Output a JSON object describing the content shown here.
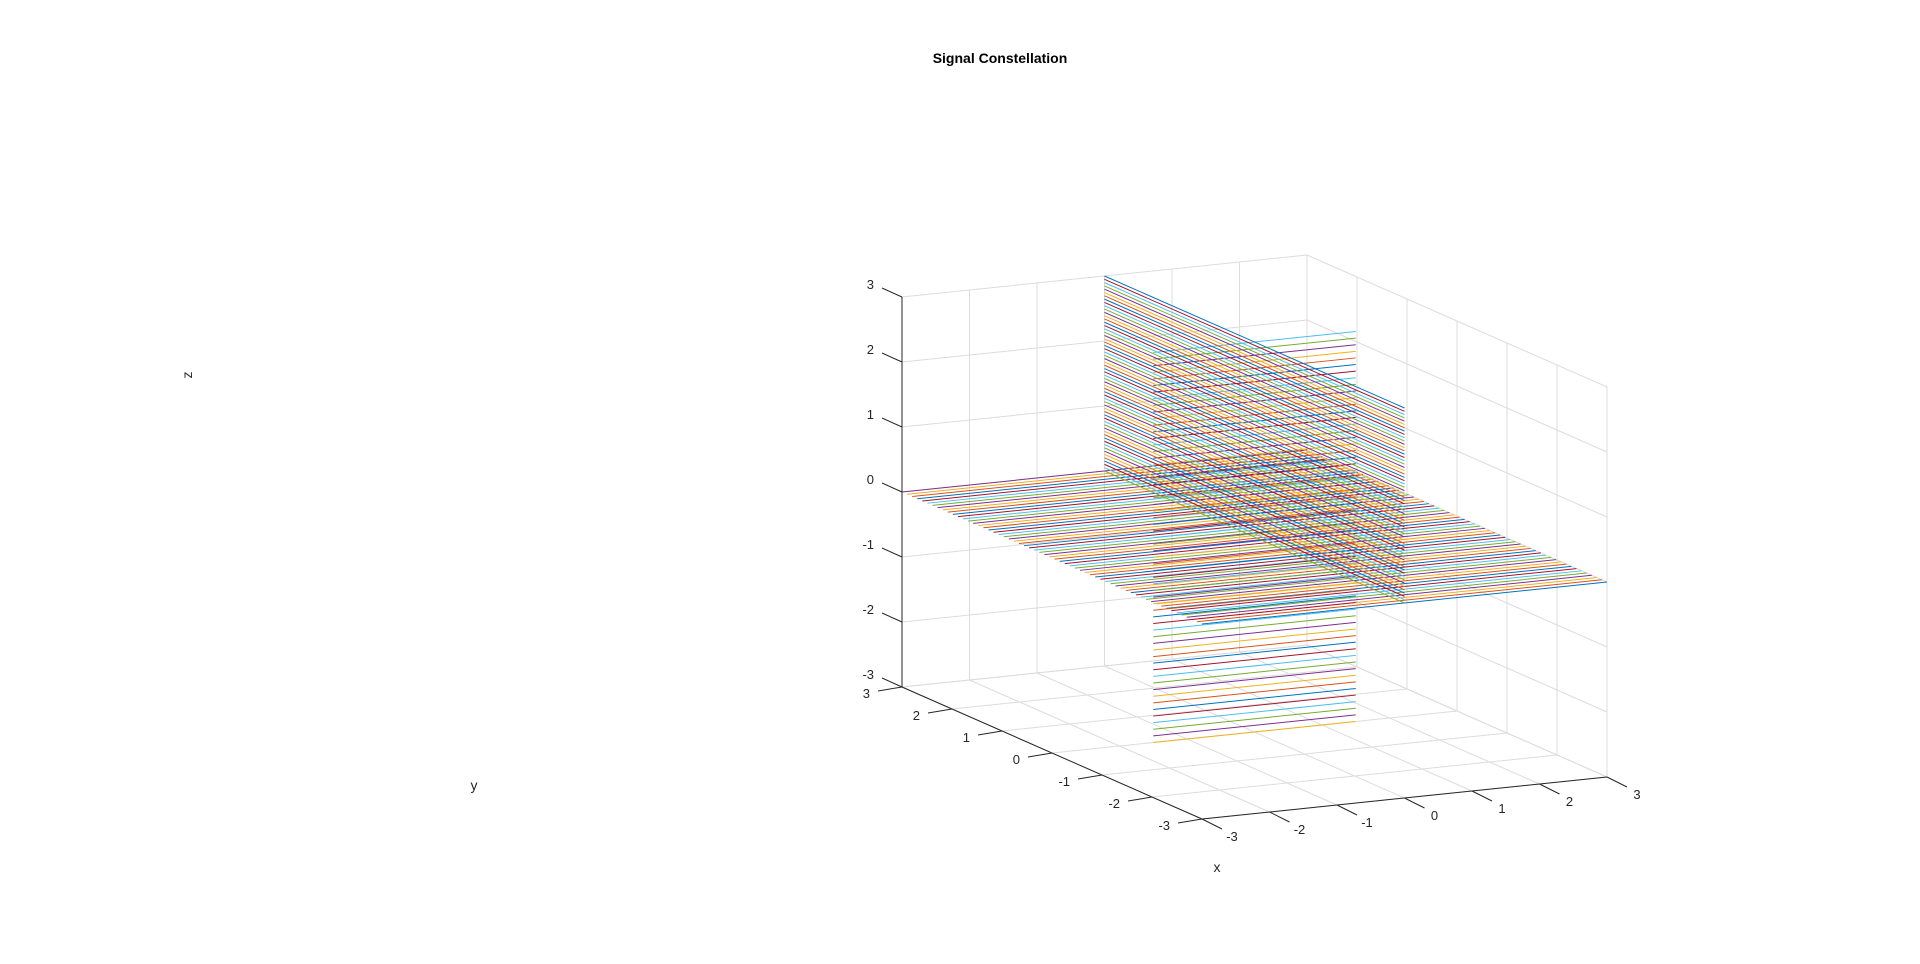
{
  "chart_data": {
    "type": "line",
    "dimensions": 3,
    "title": "Signal Constellation",
    "xlabel": "x",
    "ylabel": "y",
    "zlabel": "z",
    "xlim": [
      -3,
      3
    ],
    "ylim": [
      -3,
      3
    ],
    "zlim": [
      -3,
      3
    ],
    "x_ticks": [
      "-3",
      "-2",
      "-1",
      "0",
      "1",
      "2",
      "3"
    ],
    "y_ticks": [
      "-3",
      "-2",
      "-1",
      "0",
      "1",
      "2",
      "3"
    ],
    "z_ticks": [
      "-3",
      "-2",
      "-1",
      "0",
      "1",
      "2",
      "3"
    ],
    "grid": true,
    "box": false,
    "line_colors": [
      "#0072BD",
      "#D95319",
      "#EDB120",
      "#7E2F8E",
      "#77AC30",
      "#4DBEEE",
      "#A2142F"
    ],
    "line_families": [
      {
        "plane": "z = 0",
        "direction": "parallel to x-axis",
        "x_range": [
          -3,
          3
        ],
        "y_range": [
          -3,
          3
        ],
        "z": 0,
        "count": 60
      },
      {
        "plane": "y = 0",
        "direction": "parallel to x-axis",
        "x_range": [
          -1.5,
          1.5
        ],
        "y": 0,
        "z_range": [
          -3,
          3
        ],
        "count": 60
      },
      {
        "plane": "x = 0",
        "direction": "parallel to y-axis",
        "x": 0,
        "y_range": [
          -3,
          3
        ],
        "z_range": [
          0,
          3
        ],
        "count": 60
      }
    ]
  }
}
